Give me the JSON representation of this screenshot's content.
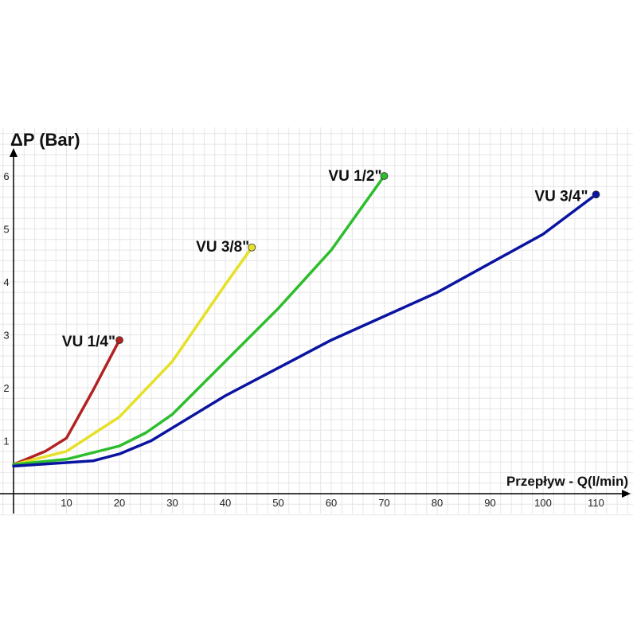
{
  "chart_data": {
    "type": "line",
    "title": "",
    "xlabel": "Przepływ - Q(l/min)",
    "ylabel": "ΔP (Bar)",
    "xlim": [
      0,
      115
    ],
    "ylim": [
      0,
      6.6
    ],
    "x_ticks": [
      "10",
      "20",
      "30",
      "40",
      "50",
      "60",
      "70",
      "80",
      "90",
      "100",
      "110"
    ],
    "y_ticks": [
      "1",
      "2",
      "3",
      "4",
      "5",
      "6"
    ],
    "grid": true,
    "legend": "none",
    "series": [
      {
        "name": "VU 1/4\"",
        "color": "#b22222",
        "points": [
          [
            0,
            0.55
          ],
          [
            6,
            0.8
          ],
          [
            10,
            1.05
          ],
          [
            15,
            1.95
          ],
          [
            20,
            2.9
          ]
        ]
      },
      {
        "name": "VU 3/8\"",
        "color": "#e6e027",
        "points": [
          [
            0,
            0.55
          ],
          [
            10,
            0.8
          ],
          [
            20,
            1.45
          ],
          [
            30,
            2.5
          ],
          [
            40,
            3.95
          ],
          [
            45,
            4.65
          ]
        ]
      },
      {
        "name": "VU 1/2\"",
        "color": "#2dbd2d",
        "points": [
          [
            0,
            0.55
          ],
          [
            10,
            0.65
          ],
          [
            20,
            0.9
          ],
          [
            25,
            1.15
          ],
          [
            30,
            1.5
          ],
          [
            40,
            2.5
          ],
          [
            50,
            3.5
          ],
          [
            60,
            4.6
          ],
          [
            70,
            6.0
          ]
        ]
      },
      {
        "name": "VU 3/4\"",
        "color": "#0a14a0",
        "points": [
          [
            0,
            0.52
          ],
          [
            15,
            0.62
          ],
          [
            20,
            0.75
          ],
          [
            26,
            1.0
          ],
          [
            40,
            1.85
          ],
          [
            60,
            2.9
          ],
          [
            80,
            3.8
          ],
          [
            100,
            4.9
          ],
          [
            110,
            5.65
          ]
        ]
      }
    ]
  }
}
